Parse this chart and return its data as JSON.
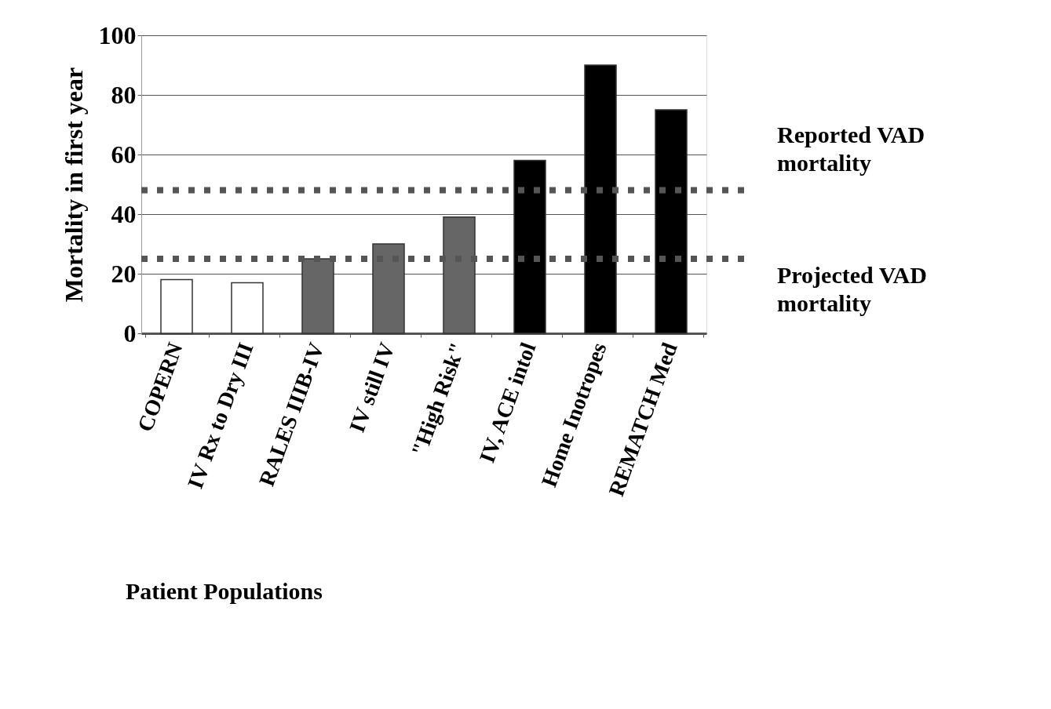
{
  "chart_data": {
    "type": "bar",
    "xlabel": "Patient Populations",
    "ylabel": "Mortality in first year",
    "categories": [
      "COPERN",
      "IV Rx to Dry III",
      "RALES IIIB-IV",
      "IV still IV",
      "\"High Risk\"",
      "IV, ACE intol",
      "Home Inotropes",
      "REMATCH Med"
    ],
    "values": [
      18,
      17,
      25,
      30,
      39,
      58,
      90,
      75
    ],
    "colors": [
      "#ffffff",
      "#ffffff",
      "#666666",
      "#666666",
      "#666666",
      "#000000",
      "#000000",
      "#000000"
    ],
    "ylim": [
      0,
      100
    ],
    "yticks": [
      0,
      20,
      40,
      60,
      80,
      100
    ],
    "grid": "y",
    "ref_lines": [
      {
        "axis": "y",
        "value": 48,
        "label": "Reported VAD mortality",
        "color": "#555555",
        "line_style": "dotted"
      },
      {
        "axis": "y",
        "value": 25,
        "label": "Projected VAD mortality",
        "color": "#555555",
        "line_style": "dotted"
      }
    ]
  }
}
